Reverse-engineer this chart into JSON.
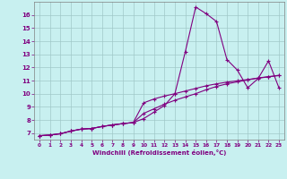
{
  "xlabel": "Windchill (Refroidissement éolien,°C)",
  "background_color": "#c8f0f0",
  "line_color": "#800080",
  "xlim": [
    -0.5,
    23.5
  ],
  "ylim": [
    6.5,
    17.0
  ],
  "xticks": [
    0,
    1,
    2,
    3,
    4,
    5,
    6,
    7,
    8,
    9,
    10,
    11,
    12,
    13,
    14,
    15,
    16,
    17,
    18,
    19,
    20,
    21,
    22,
    23
  ],
  "yticks": [
    7,
    8,
    9,
    10,
    11,
    12,
    13,
    14,
    15,
    16
  ],
  "line1_x": [
    0,
    1,
    2,
    3,
    4,
    5,
    6,
    7,
    8,
    9,
    10,
    11,
    12,
    13,
    14,
    15,
    16,
    17,
    18,
    19,
    20,
    21,
    22,
    23
  ],
  "line1_y": [
    6.8,
    6.85,
    6.95,
    7.15,
    7.3,
    7.35,
    7.5,
    7.62,
    7.72,
    7.8,
    8.1,
    8.6,
    9.1,
    10.0,
    13.2,
    16.6,
    16.1,
    15.5,
    12.6,
    11.8,
    10.45,
    11.15,
    12.5,
    10.45
  ],
  "line2_x": [
    0,
    1,
    2,
    3,
    4,
    5,
    6,
    7,
    8,
    9,
    10,
    11,
    12,
    13,
    14,
    15,
    16,
    17,
    18,
    19,
    20,
    21,
    22,
    23
  ],
  "line2_y": [
    6.8,
    6.85,
    6.95,
    7.15,
    7.3,
    7.35,
    7.5,
    7.62,
    7.72,
    7.8,
    8.5,
    8.85,
    9.2,
    9.5,
    9.75,
    10.0,
    10.3,
    10.55,
    10.75,
    10.9,
    11.05,
    11.2,
    11.3,
    11.4
  ],
  "line3_x": [
    0,
    1,
    2,
    3,
    4,
    5,
    6,
    7,
    8,
    9,
    10,
    11,
    12,
    13,
    14,
    15,
    16,
    17,
    18,
    19,
    20,
    21,
    22,
    23
  ],
  "line3_y": [
    6.8,
    6.85,
    6.95,
    7.15,
    7.3,
    7.35,
    7.5,
    7.62,
    7.72,
    7.8,
    9.3,
    9.6,
    9.82,
    10.0,
    10.2,
    10.4,
    10.6,
    10.75,
    10.88,
    10.98,
    11.08,
    11.18,
    11.28,
    11.38
  ],
  "grid_color": "#a0c8c8",
  "marker": "+",
  "markersize": 3.5,
  "linewidth": 0.8
}
